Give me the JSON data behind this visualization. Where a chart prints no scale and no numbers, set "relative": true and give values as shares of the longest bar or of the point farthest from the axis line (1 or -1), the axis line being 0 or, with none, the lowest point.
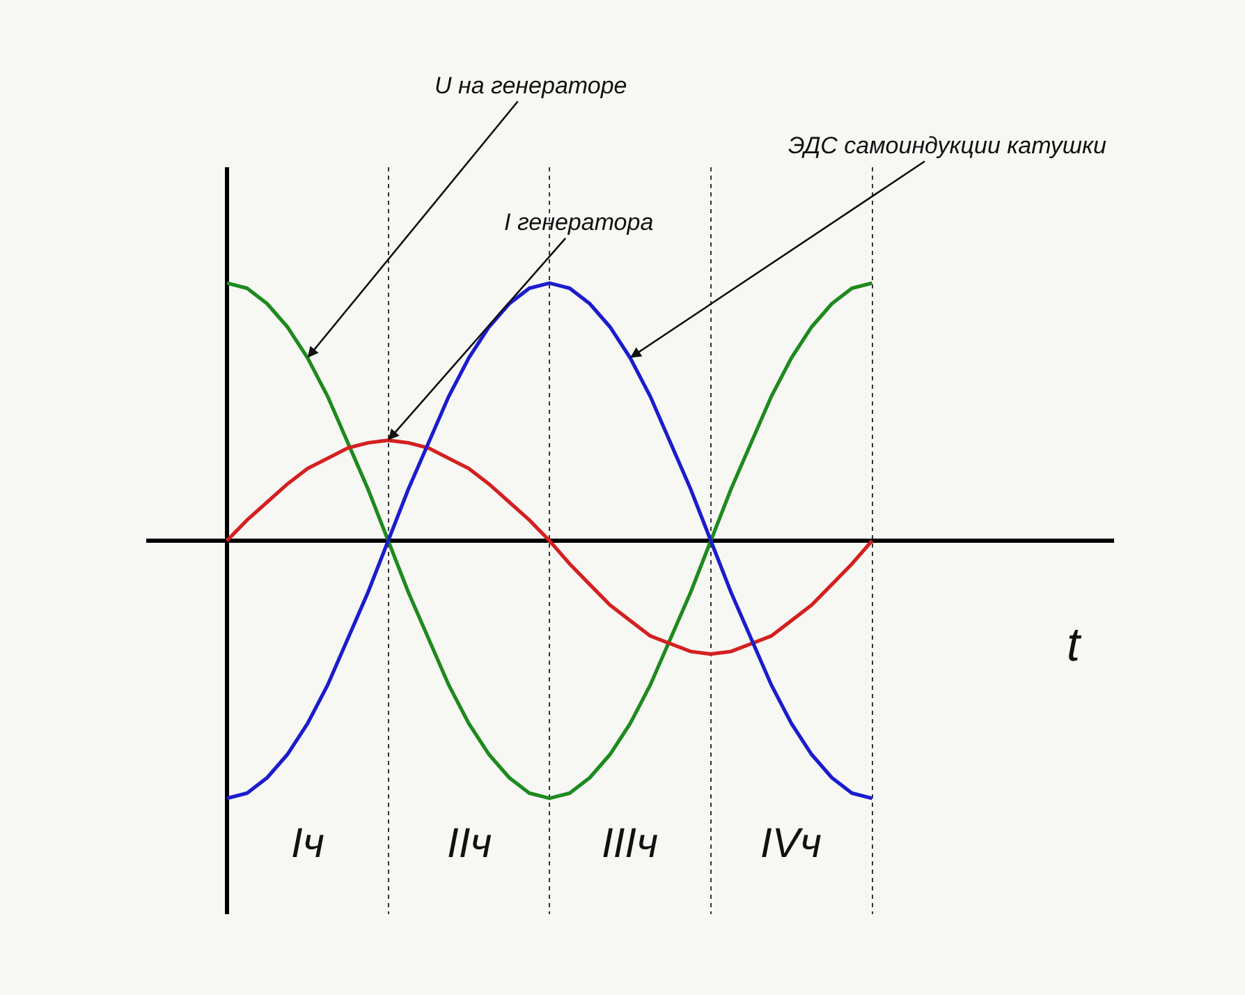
{
  "chart_data": {
    "type": "line",
    "relative": true,
    "xlabel": "t",
    "legend": false,
    "grid": "x",
    "marker": "none",
    "line_style": "solid",
    "categories": [
      null,
      null,
      null,
      null,
      null,
      null,
      null,
      null,
      null,
      null,
      null,
      null,
      null,
      null,
      null,
      null,
      null,
      null,
      null,
      null,
      null,
      null,
      null,
      null,
      null,
      null,
      null,
      null,
      null,
      null,
      null,
      null,
      null
    ],
    "series": [
      {
        "name": "U на генераторе",
        "color": "#1e8a1e",
        "values": [
          1,
          0.98,
          0.92,
          0.83,
          0.71,
          0.56,
          0.38,
          0.2,
          0,
          -0.2,
          -0.38,
          -0.56,
          -0.71,
          -0.83,
          -0.92,
          -0.98,
          -1,
          -0.98,
          -0.92,
          -0.83,
          -0.71,
          -0.56,
          -0.38,
          -0.2,
          0,
          0.2,
          0.38,
          0.56,
          0.71,
          0.83,
          0.92,
          0.98,
          1
        ]
      },
      {
        "name": "I генератора",
        "color": "#d42020",
        "values": [
          0,
          0.08,
          0.15,
          0.22,
          0.28,
          0.32,
          0.36,
          0.38,
          0.39,
          0.38,
          0.36,
          0.32,
          0.28,
          0.22,
          0.15,
          0.08,
          0,
          -0.09,
          -0.17,
          -0.25,
          -0.31,
          -0.37,
          -0.4,
          -0.43,
          -0.44,
          -0.43,
          -0.4,
          -0.37,
          -0.31,
          -0.25,
          -0.17,
          -0.09,
          0
        ]
      },
      {
        "name": "ЭДС самоиндукции катушки",
        "color": "#1c1ccc",
        "values": [
          -1,
          -0.98,
          -0.92,
          -0.83,
          -0.71,
          -0.56,
          -0.38,
          -0.2,
          0,
          0.2,
          0.38,
          0.56,
          0.71,
          0.83,
          0.92,
          0.98,
          1,
          0.98,
          0.92,
          0.83,
          0.71,
          0.56,
          0.38,
          0.2,
          0,
          -0.2,
          -0.38,
          -0.56,
          -0.71,
          -0.83,
          -0.92,
          -0.98,
          -1
        ]
      }
    ],
    "annotations": [
      "Iч",
      "IIч",
      "IIIч",
      "IVч"
    ]
  }
}
